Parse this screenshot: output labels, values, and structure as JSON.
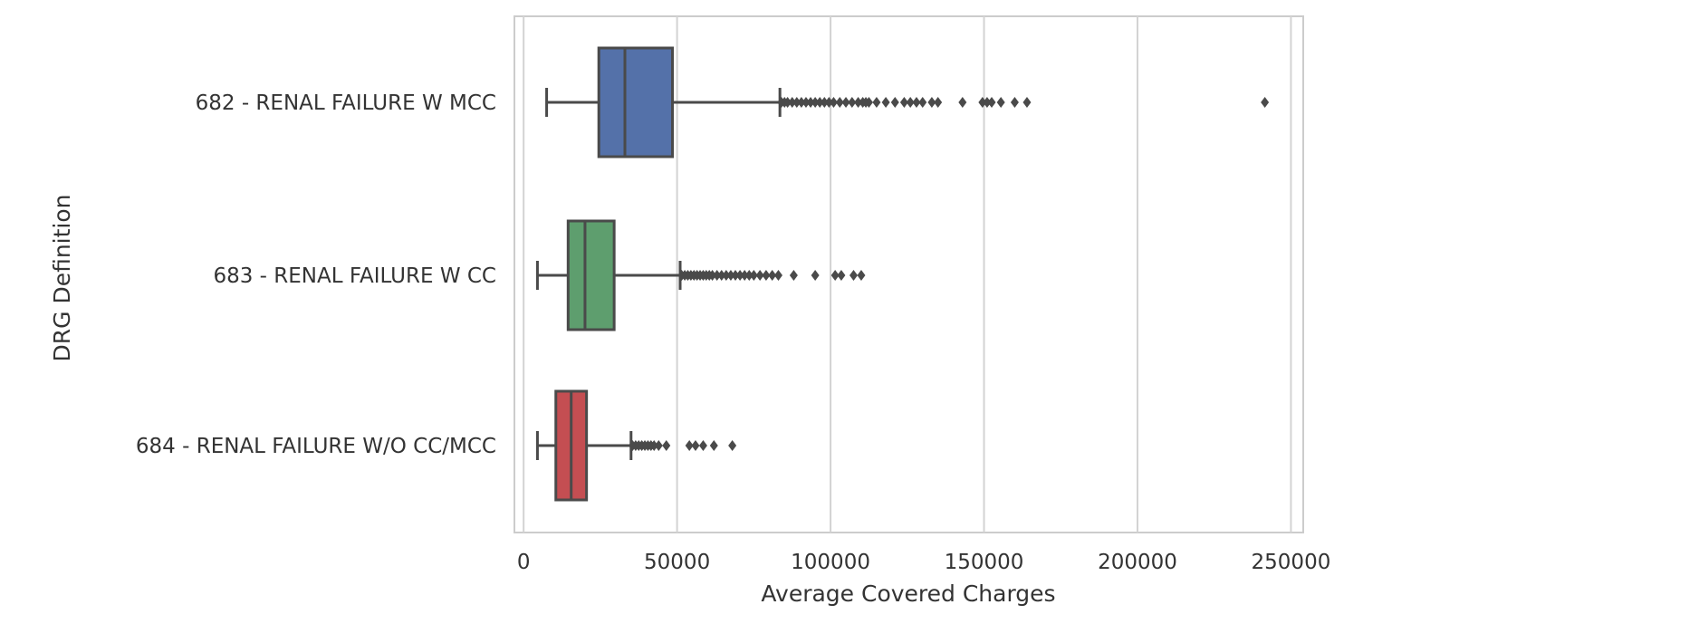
{
  "chart_data": {
    "type": "boxplot",
    "orientation": "horizontal",
    "xlabel": "Average Covered Charges",
    "ylabel": "DRG Definition",
    "xlim": [
      -3000,
      254000
    ],
    "xticks": [
      0,
      50000,
      100000,
      150000,
      200000,
      250000
    ],
    "xtick_labels": [
      "0",
      "50000",
      "100000",
      "150000",
      "200000",
      "250000"
    ],
    "grid": "vertical",
    "categories": [
      "682 - RENAL FAILURE W MCC",
      "683 - RENAL FAILURE W CC",
      "684 - RENAL FAILURE W/O CC/MCC"
    ],
    "series": [
      {
        "category": "682 - RENAL FAILURE W MCC",
        "color": "#5471a9",
        "whisker_low": 7500,
        "q1": 24500,
        "median": 33000,
        "q3": 48500,
        "whisker_high": 83500,
        "outliers": [
          84000,
          85000,
          86000,
          87500,
          89000,
          90500,
          92000,
          93500,
          95000,
          96500,
          98000,
          99500,
          101000,
          103000,
          105000,
          107000,
          109000,
          110500,
          111500,
          112500,
          115000,
          118000,
          121000,
          124000,
          126000,
          128000,
          130000,
          133000,
          135000,
          143000,
          149500,
          151000,
          152500,
          155500,
          160000,
          164000,
          241500
        ]
      },
      {
        "category": "683 - RENAL FAILURE W CC",
        "color": "#5e9e6e",
        "whisker_low": 4500,
        "q1": 14500,
        "median": 20000,
        "q3": 29500,
        "whisker_high": 51000,
        "outliers": [
          51500,
          52500,
          53500,
          54500,
          55500,
          56500,
          57500,
          58500,
          59500,
          60500,
          61500,
          63000,
          64500,
          66000,
          67500,
          69000,
          70500,
          72000,
          73500,
          75000,
          77000,
          79000,
          81000,
          83000,
          88000,
          95000,
          101500,
          103500,
          107500,
          110000
        ]
      },
      {
        "category": "684 - RENAL FAILURE W/O CC/MCC",
        "color": "#c44e52",
        "whisker_low": 4500,
        "q1": 10500,
        "median": 15500,
        "q3": 20500,
        "whisker_high": 35000,
        "outliers": [
          35500,
          36500,
          37500,
          38500,
          39500,
          40500,
          41500,
          42500,
          44000,
          46500,
          54000,
          56000,
          58500,
          62000,
          68000
        ]
      }
    ]
  }
}
